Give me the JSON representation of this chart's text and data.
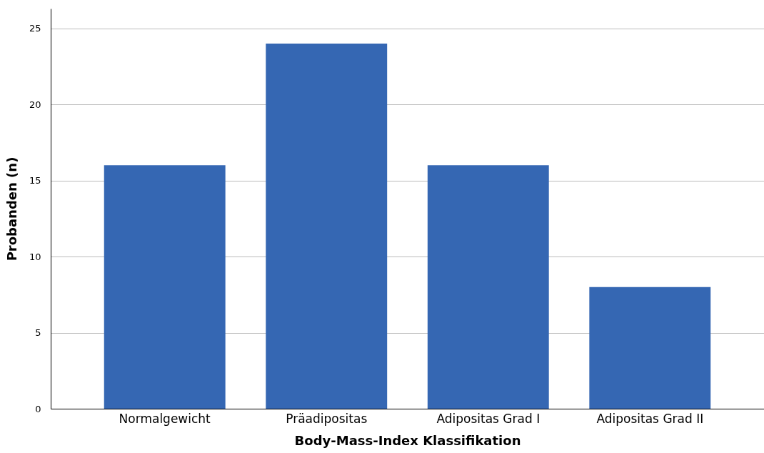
{
  "chart_data": {
    "type": "bar",
    "xlabel": "Body-Mass-Index Klassifikation",
    "ylabel": "Probanden (n)",
    "categories": [
      "Normalgewicht",
      "Präadipositas",
      "Adipositas Grad I",
      "Adipositas Grad II"
    ],
    "values": [
      16,
      24,
      16,
      8
    ],
    "color": "#3567b3",
    "ylim": [
      0,
      26.3
    ],
    "yticks": [
      0,
      5,
      10,
      15,
      20,
      25
    ],
    "grid": "y"
  }
}
